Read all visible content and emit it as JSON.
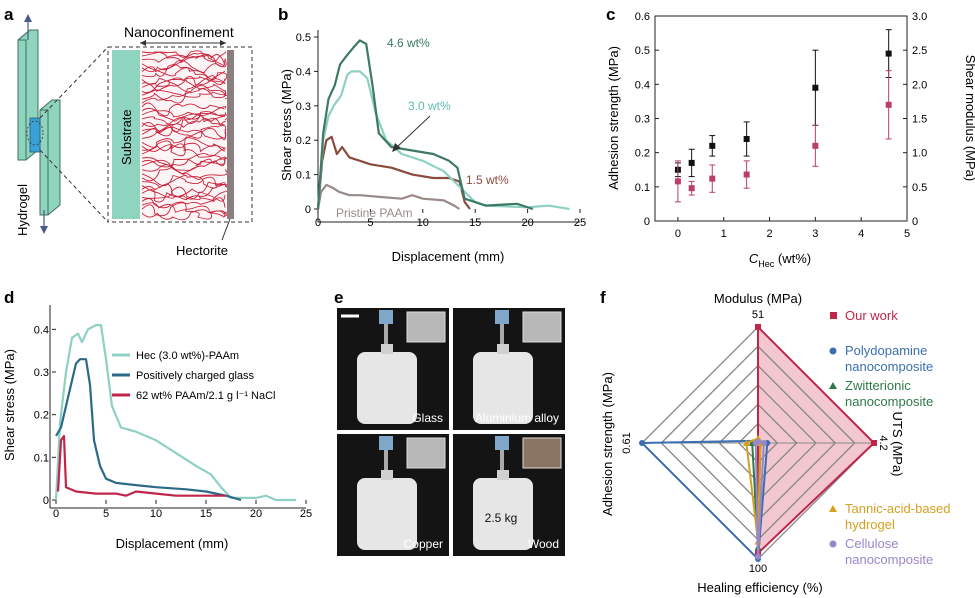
{
  "panels": {
    "a": {
      "letter": "a",
      "nanoconfinement": "Nanoconfinement",
      "substrate": "Substrate",
      "hydrogel": "Hydrogel",
      "hectorite": "Hectorite"
    },
    "b": {
      "letter": "b"
    },
    "c": {
      "letter": "c"
    },
    "d": {
      "letter": "d"
    },
    "e": {
      "letter": "e",
      "photos": [
        {
          "label": "Glass",
          "weight": ""
        },
        {
          "label": "Aluminium alloy",
          "weight": ""
        },
        {
          "label": "Copper",
          "weight": ""
        },
        {
          "label": "Wood",
          "weight": "2.5 kg"
        }
      ],
      "colors": {
        "background": "#141414",
        "jerrycan": "#e6e6e6",
        "clamp": "#7fa7c9"
      }
    },
    "f": {
      "letter": "f"
    }
  },
  "chart_data": [
    {
      "id": "b",
      "type": "line",
      "xlabel": "Displacement (mm)",
      "ylabel": "Shear stress (MPa)",
      "xlim": [
        0,
        25
      ],
      "ylim": [
        0,
        0.5
      ],
      "xticks": [
        "0",
        "5",
        "10",
        "15",
        "20",
        "25"
      ],
      "yticks": [
        "0",
        "0.1",
        "0.2",
        "0.3",
        "0.4",
        "0.5"
      ],
      "series": [
        {
          "name": "Pristine PAAm",
          "label": "Pristine PAAm",
          "color": "#9a8a8a",
          "points": [
            [
              0,
              0
            ],
            [
              0.3,
              0.05
            ],
            [
              0.8,
              0.07
            ],
            [
              1.5,
              0.06
            ],
            [
              2,
              0.05
            ],
            [
              3,
              0.04
            ],
            [
              4,
              0.04
            ],
            [
              6,
              0.035
            ],
            [
              8,
              0.03
            ],
            [
              9,
              0.04
            ],
            [
              10,
              0.03
            ],
            [
              12,
              0.025
            ],
            [
              13,
              0.01
            ],
            [
              13.5,
              0
            ]
          ]
        },
        {
          "name": "1.5 wt%",
          "label": "1.5 wt%",
          "color": "#8a4a3e",
          "points": [
            [
              0,
              0
            ],
            [
              0.4,
              0.14
            ],
            [
              0.8,
              0.2
            ],
            [
              1.3,
              0.21
            ],
            [
              1.8,
              0.16
            ],
            [
              2.3,
              0.18
            ],
            [
              3,
              0.15
            ],
            [
              4,
              0.14
            ],
            [
              5,
              0.13
            ],
            [
              7,
              0.12
            ],
            [
              9,
              0.1
            ],
            [
              11,
              0.09
            ],
            [
              12.5,
              0.09
            ],
            [
              13.5,
              0.08
            ],
            [
              14,
              0.02
            ],
            [
              14.5,
              0
            ]
          ]
        },
        {
          "name": "3.0 wt%",
          "label": "3.0 wt%",
          "color": "#8fd0c4",
          "points": [
            [
              0,
              0
            ],
            [
              0.5,
              0.2
            ],
            [
              1,
              0.27
            ],
            [
              1.5,
              0.3
            ],
            [
              2.2,
              0.33
            ],
            [
              2.8,
              0.39
            ],
            [
              3.2,
              0.4
            ],
            [
              4,
              0.4
            ],
            [
              4.7,
              0.38
            ],
            [
              5.5,
              0.28
            ],
            [
              6.5,
              0.2
            ],
            [
              8,
              0.16
            ],
            [
              10,
              0.14
            ],
            [
              12,
              0.11
            ],
            [
              13,
              0.08
            ],
            [
              14,
              0.05
            ],
            [
              15,
              0.02
            ],
            [
              16,
              0.01
            ],
            [
              20,
              0.005
            ],
            [
              22,
              0.01
            ],
            [
              24,
              0
            ]
          ]
        },
        {
          "name": "4.6 wt%",
          "label": "4.6 wt%",
          "color": "#3c7a63",
          "points": [
            [
              0,
              0
            ],
            [
              0.5,
              0.22
            ],
            [
              1,
              0.32
            ],
            [
              1.6,
              0.36
            ],
            [
              2.1,
              0.42
            ],
            [
              2.6,
              0.44
            ],
            [
              3.4,
              0.47
            ],
            [
              4,
              0.49
            ],
            [
              4.6,
              0.48
            ],
            [
              5.2,
              0.36
            ],
            [
              5.8,
              0.22
            ],
            [
              7,
              0.18
            ],
            [
              9,
              0.17
            ],
            [
              11,
              0.16
            ],
            [
              12.5,
              0.14
            ],
            [
              13.3,
              0.12
            ],
            [
              14,
              0.03
            ],
            [
              16,
              0.01
            ],
            [
              19,
              0.015
            ],
            [
              20.5,
              0
            ]
          ]
        }
      ],
      "annotation": {
        "text": "3.0 wt%"
      }
    },
    {
      "id": "c",
      "type": "scatter",
      "xlabel_main": "C",
      "xlabel_sub": "Hec",
      "xlabel_unit": " (wt%)",
      "ylabel_left": "Adhesion strength (MPa)",
      "ylabel_right": "Shear modulus (MPa)",
      "xlim": [
        -0.5,
        5
      ],
      "ylim_left": [
        0,
        0.6
      ],
      "ylim_right": [
        0,
        3.0
      ],
      "xticks": [
        "0",
        "1",
        "2",
        "3",
        "4",
        "5"
      ],
      "yticks_left": [
        "0",
        "0.1",
        "0.2",
        "0.3",
        "0.4",
        "0.5",
        "0.6"
      ],
      "yticks_right": [
        "0",
        "0.5",
        "1.0",
        "1.5",
        "2.0",
        "2.5",
        "3.0"
      ],
      "series": [
        {
          "name": "Adhesion strength",
          "color": "#111111",
          "axis": "left",
          "points": [
            {
              "x": 0,
              "y": 0.15,
              "err": 0.02
            },
            {
              "x": 0.3,
              "y": 0.17,
              "err": 0.04
            },
            {
              "x": 0.75,
              "y": 0.22,
              "err": 0.03
            },
            {
              "x": 1.5,
              "y": 0.24,
              "err": 0.05
            },
            {
              "x": 3,
              "y": 0.39,
              "err": 0.11
            },
            {
              "x": 4.6,
              "y": 0.49,
              "err": 0.07
            }
          ]
        },
        {
          "name": "Shear modulus",
          "color": "#b83e6c",
          "axis": "right",
          "points": [
            {
              "x": 0,
              "y": 0.58,
              "err": 0.3
            },
            {
              "x": 0.3,
              "y": 0.48,
              "err": 0.1
            },
            {
              "x": 0.75,
              "y": 0.62,
              "err": 0.2
            },
            {
              "x": 1.5,
              "y": 0.68,
              "err": 0.2
            },
            {
              "x": 3,
              "y": 1.1,
              "err": 0.3
            },
            {
              "x": 4.6,
              "y": 1.7,
              "err": 0.5
            }
          ]
        }
      ]
    },
    {
      "id": "d",
      "type": "line",
      "xlabel": "Displacement (mm)",
      "ylabel": "Shear stress (MPa)",
      "xlim": [
        0,
        25
      ],
      "ylim": [
        0,
        0.45
      ],
      "xticks": [
        "0",
        "5",
        "10",
        "15",
        "20",
        "25"
      ],
      "yticks": [
        "0",
        "0.1",
        "0.2",
        "0.3",
        "0.4"
      ],
      "series": [
        {
          "name": "Hec (3.0 wt%)-PAAm",
          "color": "#8fd0c4",
          "points": [
            [
              0,
              0
            ],
            [
              0.4,
              0.18
            ],
            [
              1,
              0.3
            ],
            [
              1.6,
              0.38
            ],
            [
              2.2,
              0.39
            ],
            [
              2.6,
              0.37
            ],
            [
              3.2,
              0.4
            ],
            [
              4,
              0.41
            ],
            [
              4.5,
              0.41
            ],
            [
              5,
              0.33
            ],
            [
              5.6,
              0.22
            ],
            [
              6.5,
              0.17
            ],
            [
              8,
              0.16
            ],
            [
              10,
              0.14
            ],
            [
              12,
              0.11
            ],
            [
              14,
              0.08
            ],
            [
              15.5,
              0.06
            ],
            [
              16.5,
              0.03
            ],
            [
              17.5,
              0.005
            ],
            [
              20,
              0.005
            ],
            [
              21,
              0.01
            ],
            [
              22,
              0
            ],
            [
              24,
              0
            ]
          ]
        },
        {
          "name": "Positively charged glass",
          "color": "#2b6a88",
          "points": [
            [
              0,
              0.15
            ],
            [
              0.5,
              0.17
            ],
            [
              1,
              0.22
            ],
            [
              1.5,
              0.27
            ],
            [
              2,
              0.32
            ],
            [
              2.4,
              0.33
            ],
            [
              3,
              0.33
            ],
            [
              3.4,
              0.27
            ],
            [
              3.8,
              0.14
            ],
            [
              4.4,
              0.08
            ],
            [
              5,
              0.05
            ],
            [
              6,
              0.04
            ],
            [
              8,
              0.035
            ],
            [
              10,
              0.03
            ],
            [
              13,
              0.025
            ],
            [
              15,
              0.02
            ],
            [
              17,
              0.01
            ],
            [
              18.5,
              0
            ]
          ]
        },
        {
          "name": "62 wt% PAAm/2.1 g l⁻¹ NaCl",
          "color": "#c0264a",
          "points": [
            [
              0.2,
              0.02
            ],
            [
              0.5,
              0.14
            ],
            [
              0.8,
              0.15
            ],
            [
              1,
              0.03
            ],
            [
              2,
              0.02
            ],
            [
              4,
              0.015
            ],
            [
              6,
              0.015
            ],
            [
              7,
              0.01
            ],
            [
              8,
              0.02
            ],
            [
              10,
              0.015
            ],
            [
              12,
              0.01
            ],
            [
              15,
              0.01
            ],
            [
              17,
              0.01
            ]
          ]
        }
      ]
    },
    {
      "id": "f",
      "type": "radar",
      "axes": [
        {
          "name": "Modulus (MPa)",
          "max": "51"
        },
        {
          "name": "UTS (MPa)",
          "max": "4.2"
        },
        {
          "name": "Healing efficiency (%)",
          "max": "100"
        },
        {
          "name": "Adhesion strength (MPa)",
          "max": "0.61"
        }
      ],
      "series": [
        {
          "name": "Our work",
          "color": "#c0264a",
          "fill": "#f3c7cf",
          "values": [
            1.0,
            1.0,
            0.95,
            0.0
          ]
        },
        {
          "name": "Polydopamine\nnanocomposite",
          "color": "#3b6fb0",
          "values": [
            0.02,
            0.08,
            1.0,
            1.0
          ]
        },
        {
          "name": "Zwitterionic\nnanocomposite",
          "color": "#2e7a48",
          "values": [
            0.02,
            0.02,
            0.9,
            0.05
          ]
        },
        {
          "name": "Tannic-acid-based\nhydrogel",
          "color": "#d4a020",
          "values": [
            0.04,
            0.02,
            0.85,
            0.1
          ]
        },
        {
          "name": "Cellulose\nnanocomposite",
          "color": "#9a86c8",
          "values": [
            0.01,
            0.05,
            0.98,
            0.02
          ]
        }
      ]
    }
  ]
}
